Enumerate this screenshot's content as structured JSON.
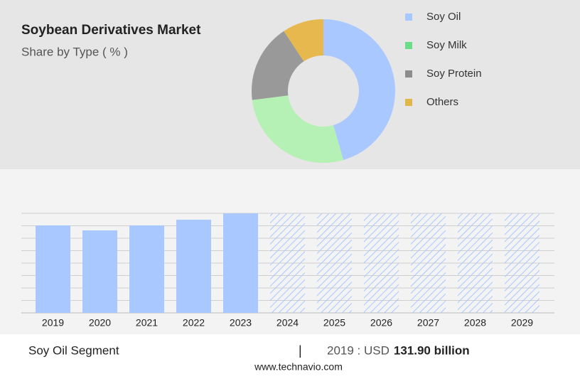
{
  "title": "Soybean Derivatives Market",
  "subtitle": "Share by Type ( % )",
  "chart_data": [
    {
      "type": "pie",
      "categories": [
        "Soy Oil",
        "Soy Milk",
        "Soy Protein",
        "Others"
      ],
      "values": [
        45.5,
        27.5,
        17.7,
        9.3
      ],
      "colors": [
        "#a8c8ff",
        "#b5f0b5",
        "#999999",
        "#e6b84d"
      ],
      "legend_colors": [
        "#a8c8ff",
        "#6ddc8a",
        "#8c8c8c",
        "#e0b84a"
      ]
    },
    {
      "type": "bar",
      "categories": [
        "2019",
        "2020",
        "2021",
        "2022",
        "2023",
        "2024",
        "2025",
        "2026",
        "2027",
        "2028",
        "2029"
      ],
      "values": [
        131.9,
        124.4,
        131.9,
        140.5,
        150.1,
        null,
        null,
        null,
        null,
        null,
        null
      ],
      "color": "#a8c8ff",
      "forecast_color": "#a8c8ff",
      "ylim": [
        0,
        150.1
      ]
    }
  ],
  "footer": {
    "segment": "Soy Oil Segment",
    "label": "2019 : USD",
    "value": "131.90 billion",
    "source": "www.technavio.com"
  }
}
